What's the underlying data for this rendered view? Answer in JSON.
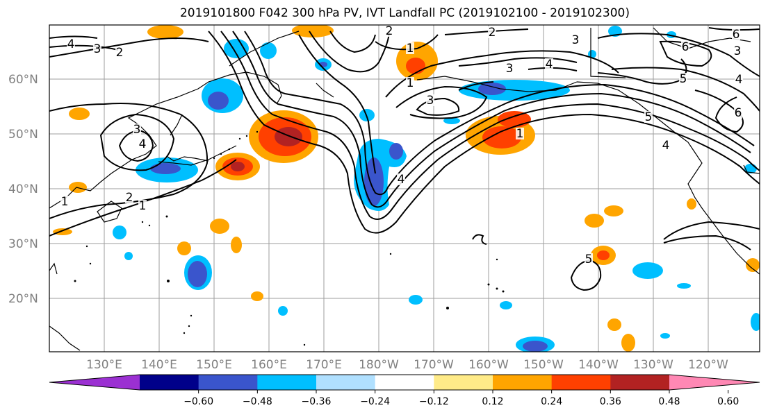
{
  "figure": {
    "title": "2019101800 F042 300 hPa PV, IVT Landfall PC (2019102100 - 2019102300)"
  },
  "map": {
    "lat_labels": [
      "60°N",
      "50°N",
      "40°N",
      "30°N",
      "20°N"
    ],
    "lon_labels": [
      "130°E",
      "140°E",
      "150°E",
      "160°E",
      "170°E",
      "180°W",
      "170°W",
      "160°W",
      "150°W",
      "140°W",
      "130°W",
      "120°W"
    ],
    "contour_labels": [
      "4",
      "3",
      "2",
      "3",
      "4",
      "2",
      "1",
      "2",
      "1",
      "3",
      "2",
      "3",
      "4",
      "3",
      "4",
      "5",
      "1",
      "1",
      "1",
      "4",
      "5",
      "6",
      "3",
      "4",
      "6",
      "5",
      "6"
    ],
    "colors": {
      "land_outline": "#000000",
      "gridline": "#9e9e9e",
      "contour": "#000000"
    }
  },
  "colorbar": {
    "colors": [
      "#9b30d2",
      "#00008a",
      "#3a55cc",
      "#00bfff",
      "#b0e0ff",
      "#ffffff",
      "#ffeb88",
      "#ffa500",
      "#ff4000",
      "#b22222",
      "#ff88b4"
    ],
    "ticks": [
      "−0.60",
      "−0.48",
      "−0.36",
      "−0.24",
      "−0.12",
      "0.12",
      "0.24",
      "0.36",
      "0.48",
      "0.60"
    ]
  }
}
